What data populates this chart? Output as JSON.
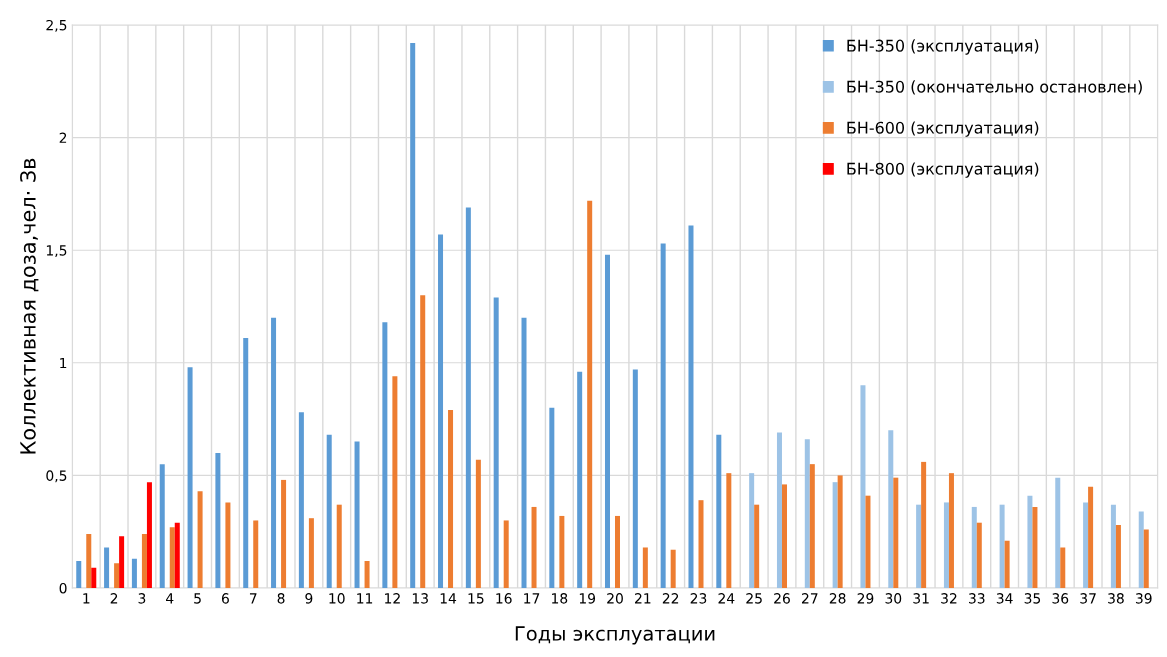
{
  "chart_data": {
    "type": "bar",
    "xlabel": "Годы эксплуатации",
    "ylabel": "Коллективная доза,чел· Зв",
    "categories": [
      "1",
      "2",
      "3",
      "4",
      "5",
      "6",
      "7",
      "8",
      "9",
      "10",
      "11",
      "12",
      "13",
      "14",
      "15",
      "16",
      "17",
      "18",
      "19",
      "20",
      "21",
      "22",
      "23",
      "24",
      "25",
      "26",
      "27",
      "28",
      "29",
      "30",
      "31",
      "32",
      "33",
      "34",
      "35",
      "36",
      "37",
      "38",
      "39"
    ],
    "series": [
      {
        "name": "БН-350 (эксплуатация)",
        "color": "#5b9bd5",
        "values": [
          0.12,
          0.18,
          0.13,
          0.55,
          0.98,
          0.6,
          1.11,
          1.2,
          0.78,
          0.68,
          0.65,
          1.18,
          2.42,
          1.57,
          1.69,
          1.29,
          1.2,
          0.8,
          0.96,
          1.48,
          0.97,
          1.53,
          1.61,
          0.68,
          null,
          null,
          null,
          null,
          null,
          null,
          null,
          null,
          null,
          null,
          null,
          null,
          null,
          null,
          null
        ]
      },
      {
        "name": "БН-350 (окончательно остановлен)",
        "color": "#9dc3e6",
        "values": [
          null,
          null,
          null,
          null,
          null,
          null,
          null,
          null,
          null,
          null,
          null,
          null,
          null,
          null,
          null,
          null,
          null,
          null,
          null,
          null,
          null,
          null,
          null,
          null,
          0.51,
          0.69,
          0.66,
          0.47,
          0.9,
          0.7,
          0.37,
          0.38,
          0.36,
          0.37,
          0.41,
          0.49,
          0.38,
          0.37,
          0.34
        ]
      },
      {
        "name": "БН-600 (эксплуатация)",
        "color": "#ed7d31",
        "values": [
          0.24,
          0.11,
          0.24,
          0.27,
          0.43,
          0.38,
          0.3,
          0.48,
          0.31,
          0.37,
          0.12,
          0.94,
          1.3,
          0.79,
          0.57,
          0.3,
          0.36,
          0.32,
          1.72,
          0.32,
          0.18,
          0.17,
          0.39,
          0.51,
          0.37,
          0.46,
          0.55,
          0.5,
          0.41,
          0.49,
          0.56,
          0.51,
          0.29,
          0.21,
          0.36,
          0.18,
          0.45,
          0.28,
          0.26
        ]
      },
      {
        "name": "БН-800 (эксплуатация)",
        "color": "#ff0000",
        "values": [
          0.09,
          0.23,
          0.47,
          0.29,
          null,
          null,
          null,
          null,
          null,
          null,
          null,
          null,
          null,
          null,
          null,
          null,
          null,
          null,
          null,
          null,
          null,
          null,
          null,
          null,
          null,
          null,
          null,
          null,
          null,
          null,
          null,
          null,
          null,
          null,
          null,
          null,
          null,
          null,
          null
        ]
      }
    ],
    "ylim": [
      0,
      2.5
    ],
    "yticks": [
      0,
      {
        "value": 0.5,
        "label": "0,5"
      },
      1,
      {
        "value": 1.5,
        "label": "1,5"
      },
      2,
      {
        "value": 2.5,
        "label": "2,5"
      }
    ],
    "grid": true,
    "legend": "top right"
  }
}
